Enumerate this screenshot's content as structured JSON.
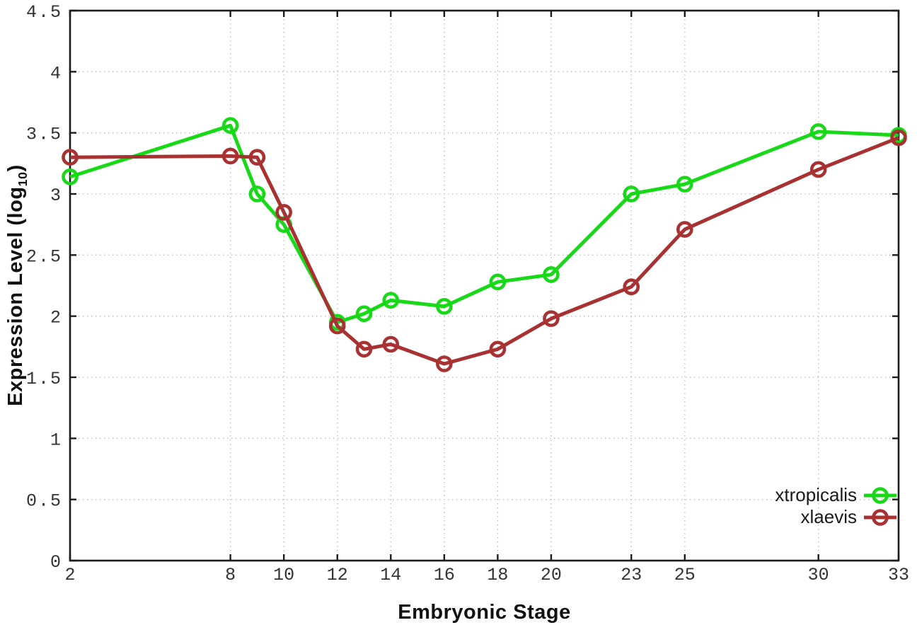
{
  "figure": {
    "background": "#ffffff",
    "border_color": "#1c1c1c",
    "grid_color": "#bbbbbb",
    "tick_label_color": "#333333"
  },
  "yaxis_title": {
    "prefix": "Expression Level (log",
    "subscript": "10",
    "suffix": ")"
  },
  "chart_data": {
    "type": "line",
    "title": "",
    "xlabel": "Embryonic Stage",
    "ylabel": "Expression Level (log10)",
    "x": [
      2,
      8,
      9,
      10,
      12,
      13,
      14,
      16,
      18,
      20,
      23,
      25,
      30,
      33
    ],
    "series": [
      {
        "name": "xtropicalis",
        "color": "#17d917",
        "values": [
          3.14,
          3.56,
          3.0,
          2.75,
          1.95,
          2.02,
          2.13,
          2.08,
          2.28,
          2.34,
          3.0,
          3.08,
          3.51,
          3.48
        ]
      },
      {
        "name": "xlaevis",
        "color": "#a93131",
        "values": [
          3.3,
          3.31,
          3.3,
          2.85,
          1.92,
          1.73,
          1.77,
          1.61,
          1.73,
          1.98,
          2.24,
          2.71,
          3.2,
          3.46
        ]
      }
    ],
    "xticks": [
      2,
      8,
      10,
      12,
      14,
      16,
      18,
      20,
      23,
      25,
      30,
      33
    ],
    "yticks": [
      0,
      0.5,
      1,
      1.5,
      2,
      2.5,
      3,
      3.5,
      4,
      4.5
    ],
    "xlim": [
      2,
      33
    ],
    "ylim": [
      0,
      4.5
    ],
    "grid": true,
    "legend_position": "bottom-right",
    "marker": "open-circle",
    "line_width": 5
  }
}
